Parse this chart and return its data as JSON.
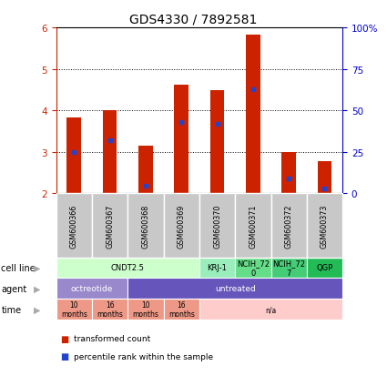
{
  "title": "GDS4330 / 7892581",
  "samples": [
    "GSM600366",
    "GSM600367",
    "GSM600368",
    "GSM600369",
    "GSM600370",
    "GSM600371",
    "GSM600372",
    "GSM600373"
  ],
  "bar_heights": [
    3.82,
    4.0,
    3.15,
    4.62,
    4.48,
    5.82,
    3.0,
    2.78
  ],
  "bar_base": 2.0,
  "blue_values": [
    3.0,
    3.28,
    2.18,
    3.72,
    3.68,
    4.5,
    2.35,
    2.12
  ],
  "ylim": [
    2.0,
    6.0
  ],
  "yticks_left": [
    2,
    3,
    4,
    5,
    6
  ],
  "yticks_right": [
    0,
    25,
    50,
    75,
    100
  ],
  "bar_color": "#cc2200",
  "blue_color": "#2244cc",
  "sample_label_bg": "#c8c8c8",
  "cell_line_groups": [
    {
      "label": "CNDT2.5",
      "start": 0,
      "end": 4,
      "color": "#ccffcc"
    },
    {
      "label": "KRJ-1",
      "start": 4,
      "end": 5,
      "color": "#99eebb"
    },
    {
      "label": "NCIH_72\n0",
      "start": 5,
      "end": 6,
      "color": "#66dd88"
    },
    {
      "label": "NCIH_72\n7",
      "start": 6,
      "end": 7,
      "color": "#44cc77"
    },
    {
      "label": "QGP",
      "start": 7,
      "end": 8,
      "color": "#22bb55"
    }
  ],
  "agent_groups": [
    {
      "label": "octreotide",
      "start": 0,
      "end": 2,
      "color": "#9988cc"
    },
    {
      "label": "untreated",
      "start": 2,
      "end": 8,
      "color": "#6655bb"
    }
  ],
  "time_groups": [
    {
      "label": "10\nmonths",
      "start": 0,
      "end": 1,
      "color": "#ee9988"
    },
    {
      "label": "16\nmonths",
      "start": 1,
      "end": 2,
      "color": "#ee9988"
    },
    {
      "label": "10\nmonths",
      "start": 2,
      "end": 3,
      "color": "#ee9988"
    },
    {
      "label": "16\nmonths",
      "start": 3,
      "end": 4,
      "color": "#ee9988"
    },
    {
      "label": "n/a",
      "start": 4,
      "end": 8,
      "color": "#ffcccc"
    }
  ],
  "row_labels": [
    "cell line",
    "agent",
    "time"
  ],
  "legend_items": [
    {
      "label": "transformed count",
      "color": "#cc2200"
    },
    {
      "label": "percentile rank within the sample",
      "color": "#2244cc"
    }
  ],
  "bg_color": "#ffffff",
  "tick_color_left": "#cc2200",
  "tick_color_right": "#0000cc"
}
